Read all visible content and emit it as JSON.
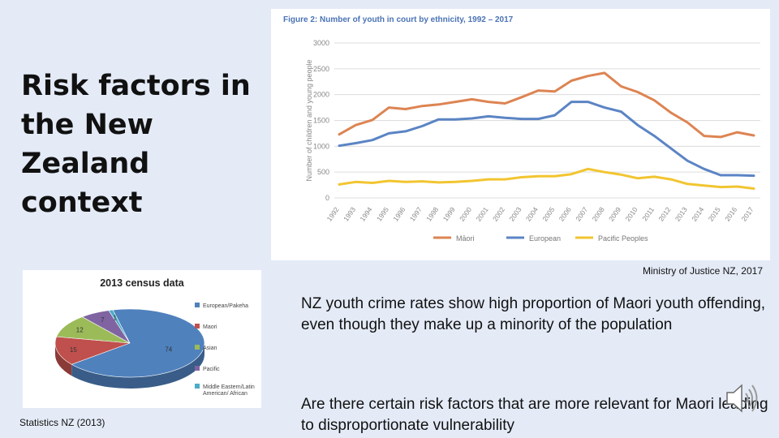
{
  "slide": {
    "title": "Risk factors in the New Zealand context",
    "source_line": "Ministry of Justice NZ, 2017",
    "source_pie": "Statistics NZ (2013)",
    "paragraph1": "NZ youth crime rates show high proportion of Maori youth offending, even though they make up a minority of the population",
    "paragraph2": "Are there certain risk factors that are more relevant for Maori leading to disproportionate vulnerability",
    "audio_icon": "speaker-icon"
  },
  "chart_data": [
    {
      "type": "line",
      "title": "Figure 2: Number of youth in court by ethnicity, 1992 – 2017",
      "xlabel": "",
      "ylabel": "Number of children and young people",
      "ylim": [
        0,
        3000
      ],
      "yticks": [
        0,
        500,
        1000,
        1500,
        2000,
        2500,
        3000
      ],
      "grid": true,
      "legend": "bottom",
      "x": [
        "1992",
        "1993",
        "1994",
        "1995",
        "1996",
        "1997",
        "1998",
        "1999",
        "2000",
        "2001",
        "2002",
        "2003",
        "2004",
        "2005",
        "2006",
        "2007",
        "2008",
        "2009",
        "2010",
        "2011",
        "2012",
        "2013",
        "2014",
        "2015",
        "2016",
        "2017"
      ],
      "series": [
        {
          "name": "Māori",
          "color": "#dd8452",
          "values": [
            1230,
            1410,
            1510,
            1750,
            1720,
            1780,
            1810,
            1860,
            1910,
            1860,
            1830,
            1950,
            2080,
            2060,
            2270,
            2360,
            2420,
            2160,
            2050,
            1890,
            1650,
            1460,
            1200,
            1180,
            1270,
            1210
          ]
        },
        {
          "name": "European",
          "color": "#5b84c4",
          "values": [
            1010,
            1060,
            1120,
            1250,
            1290,
            1390,
            1520,
            1520,
            1540,
            1580,
            1550,
            1530,
            1530,
            1600,
            1860,
            1860,
            1750,
            1670,
            1410,
            1200,
            960,
            720,
            560,
            440,
            440,
            430
          ]
        },
        {
          "name": "Pacific Peoples",
          "color": "#f2c530",
          "values": [
            260,
            310,
            290,
            330,
            310,
            320,
            300,
            310,
            330,
            360,
            360,
            400,
            420,
            420,
            460,
            560,
            500,
            450,
            380,
            410,
            360,
            270,
            240,
            210,
            220,
            180
          ]
        }
      ]
    },
    {
      "type": "pie",
      "title": "2013 census data",
      "categories": [
        "European/Pakeha",
        "Maori",
        "Asian",
        "Pacific",
        "Middle Eastern/Latin American/ African"
      ],
      "values": [
        74,
        15,
        12,
        7,
        1
      ],
      "colors": [
        "#4f81bd",
        "#c0504d",
        "#9bbb59",
        "#8064a2",
        "#4bacc6"
      ],
      "legend": "right"
    }
  ]
}
